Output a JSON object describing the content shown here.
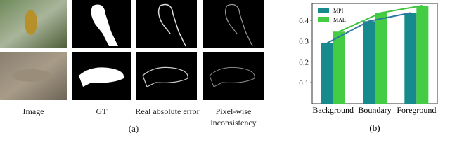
{
  "panel_a": {
    "columns": [
      "Image",
      "GT",
      "Real absolute error",
      "Pixel-wise inconsistency"
    ],
    "panel_label": "(a)"
  },
  "chart_data": {
    "type": "bar",
    "panel_label": "(b)",
    "categories": [
      "Background",
      "Boundary",
      "Foreground"
    ],
    "series": [
      {
        "name": "MPI",
        "color": "#168a8c",
        "line_color": "#2b78a0",
        "values": [
          0.29,
          0.395,
          0.435
        ]
      },
      {
        "name": "MAE",
        "color": "#44cc44",
        "line_color": "#3fc43f",
        "values": [
          0.345,
          0.435,
          0.47
        ]
      }
    ],
    "ylim": [
      0,
      0.48
    ],
    "yticks": [
      0.1,
      0.2,
      0.3,
      0.4
    ],
    "legend": "upper left",
    "lines_through_tops": true
  }
}
